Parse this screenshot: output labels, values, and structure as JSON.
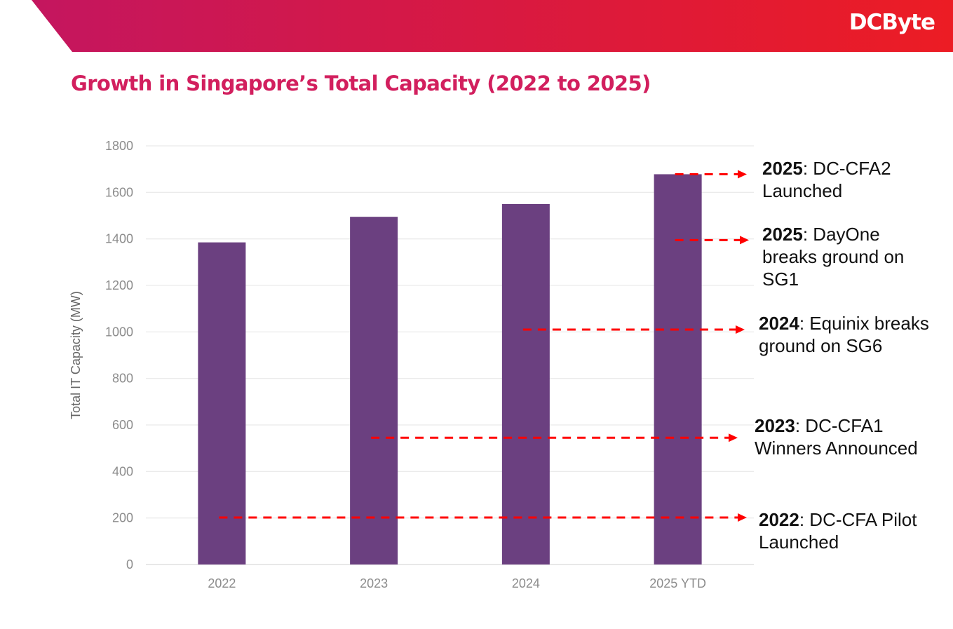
{
  "header": {
    "logo": "DCByte",
    "gradient_start": "#c4165f",
    "gradient_end": "#ec1c24"
  },
  "title": "Growth in Singapore’s Total Capacity (2022 to 2025)",
  "chart_data": {
    "type": "bar",
    "title": "Growth in Singapore’s Total Capacity (2022 to 2025)",
    "categories": [
      "2022",
      "2023",
      "2024",
      "2025 YTD"
    ],
    "values": [
      1385,
      1495,
      1550,
      1678
    ],
    "xlabel": "",
    "ylabel": "Total IT Capacity (MW)",
    "ylim": [
      0,
      1800
    ],
    "yticks": [
      0,
      200,
      400,
      600,
      800,
      1000,
      1200,
      1400,
      1600,
      1800
    ],
    "grid": true,
    "bar_color": "#6b4080",
    "annotation_color": "#ff0000",
    "annotations": [
      {
        "year": "2025",
        "text": ": DC-CFA2 Launched",
        "line1": "DC-CFA2",
        "line2": "Launched",
        "from_category": 3,
        "y": 1678
      },
      {
        "year": "2025",
        "text": ": DayOne breaks ground on SG1",
        "line1": "DayOne",
        "line2": "breaks ground on",
        "line3": "SG1",
        "from_category": 3,
        "y": 1395
      },
      {
        "year": "2024",
        "text": ": Equinix breaks ground on SG6",
        "line1": "Equinix breaks",
        "line2": "ground on SG6",
        "from_category": 2,
        "y": 1010
      },
      {
        "year": "2023",
        "text": ": DC-CFA1 Winners Announced",
        "line1": "DC-CFA1",
        "line2": "Winners Announced",
        "from_category": 1,
        "y": 545
      },
      {
        "year": "2022",
        "text": ": DC-CFA Pilot Launched",
        "line1": "DC-CFA Pilot",
        "line2": "Launched",
        "from_category": 0,
        "y": 202
      }
    ]
  }
}
